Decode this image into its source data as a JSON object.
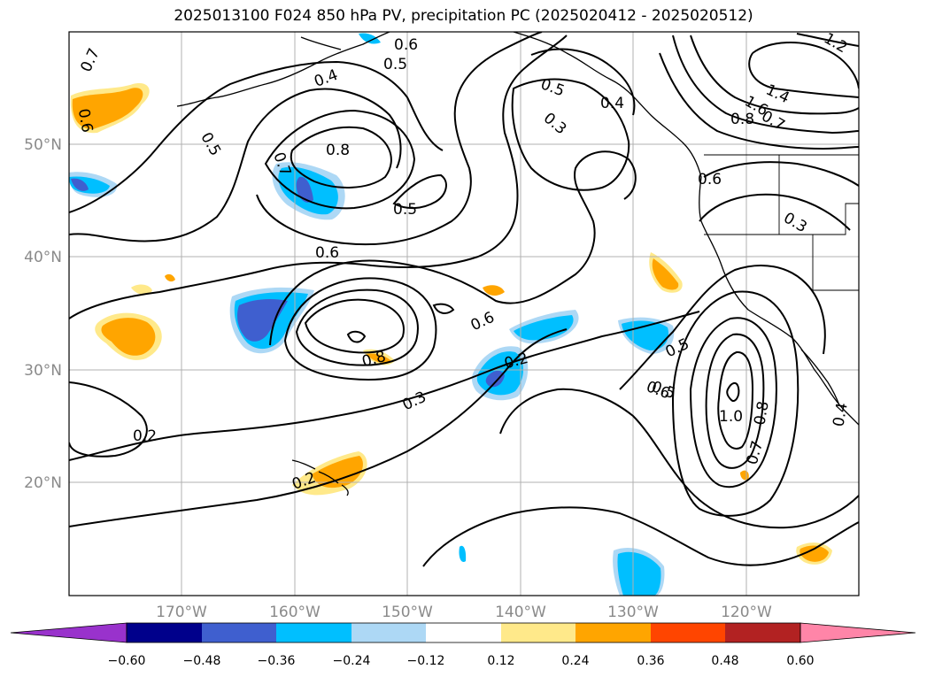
{
  "title": "2025013100 F024 850 hPa PV, precipitation PC (2025020412 - 2025020512)",
  "map": {
    "lat_labels": [
      "50°N",
      "40°N",
      "30°N",
      "20°N"
    ],
    "lon_labels": [
      "170°W",
      "160°W",
      "150°W",
      "140°W",
      "130°W",
      "120°W"
    ],
    "grid": true
  },
  "contour_labels": [
    "0.7",
    "0.6",
    "0.5",
    "0.6",
    "0.4",
    "0.5",
    "0.5",
    "0.3",
    "0.4",
    "1.2",
    "1.6",
    "0.8",
    "1.4",
    "0.7",
    "0.8",
    "0.5",
    "0.6",
    "0.3",
    "0.7",
    "0.6",
    "0.6",
    "0.8",
    "0.5",
    "0.2",
    "0.5",
    "0.3",
    "0.6",
    "1.0",
    "0.8",
    "0.7",
    "0.2",
    "0.2",
    "0.4"
  ],
  "colorbar": {
    "colors": [
      "#9932cc",
      "#00008b",
      "#3f5fcf",
      "#00bfff",
      "#add8f5",
      "#ffffff",
      "#ffe98a",
      "#ffa500",
      "#ff4500",
      "#b22222",
      "#ff85a8"
    ],
    "ticks": [
      "−0.60",
      "−0.48",
      "−0.36",
      "−0.24",
      "−0.12",
      "0.12",
      "0.24",
      "0.36",
      "0.48",
      "0.60"
    ]
  }
}
